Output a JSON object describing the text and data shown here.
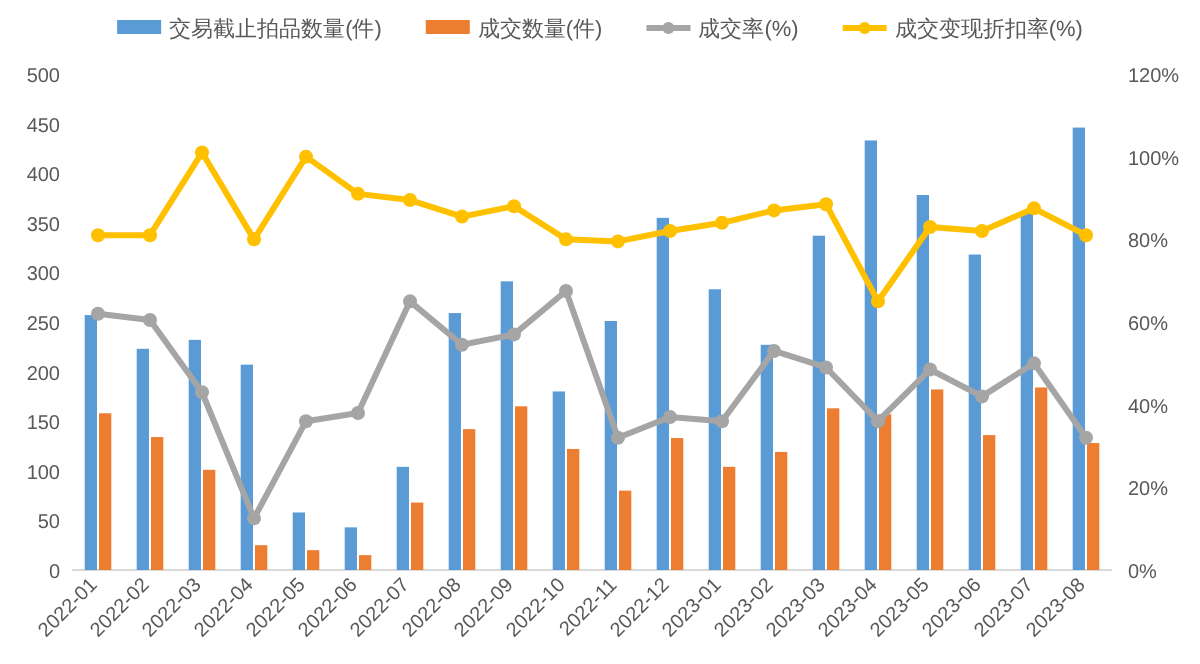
{
  "chart_data": {
    "type": "bar",
    "categories": [
      "2022-01",
      "2022-02",
      "2022-03",
      "2022-04",
      "2022-05",
      "2022-06",
      "2022-07",
      "2022-08",
      "2022-09",
      "2022-10",
      "2022-11",
      "2022-12",
      "2023-01",
      "2023-02",
      "2023-03",
      "2023-04",
      "2023-05",
      "2023-06",
      "2023-07",
      "2023-08"
    ],
    "series": [
      {
        "name": "交易截止拍品数量(件)",
        "color": "#5b9bd5",
        "values": [
          257,
          223,
          232,
          207,
          58,
          43,
          104,
          259,
          291,
          180,
          251,
          355,
          283,
          227,
          337,
          433,
          378,
          318,
          362,
          446
        ]
      },
      {
        "name": "成交数量(件)",
        "color": "#ed7d31",
        "values": [
          158,
          134,
          101,
          25,
          20,
          15,
          68,
          142,
          165,
          122,
          80,
          133,
          104,
          119,
          163,
          157,
          182,
          136,
          184,
          128
        ]
      },
      {
        "name": "成交率(%)",
        "type": "line",
        "axis": "y2",
        "color": "#a5a5a5",
        "values": [
          62,
          60.5,
          43,
          12.5,
          36,
          38,
          65,
          54.5,
          57,
          67.5,
          32,
          37,
          36,
          53,
          49,
          36,
          48.5,
          42,
          50,
          32
        ]
      },
      {
        "name": "成交变现折扣率(%)",
        "type": "line",
        "axis": "y2",
        "color": "#ffc000",
        "values": [
          81,
          81,
          101,
          80,
          100,
          91,
          89.5,
          85.5,
          88,
          80,
          79.5,
          82,
          84,
          87,
          88.5,
          65,
          83,
          82,
          87.5,
          81
        ]
      }
    ],
    "ylim": [
      0,
      500
    ],
    "yticks": [
      0,
      50,
      100,
      150,
      200,
      250,
      300,
      350,
      400,
      450,
      500
    ],
    "y2lim": [
      0,
      120
    ],
    "y2ticks": [
      {
        "value": 0,
        "label": "0%"
      },
      {
        "value": 20,
        "label": "20%"
      },
      {
        "value": 40,
        "label": "40%"
      },
      {
        "value": 60,
        "label": "60%"
      },
      {
        "value": 80,
        "label": "80%"
      },
      {
        "value": 100,
        "label": "100%"
      },
      {
        "value": 120,
        "label": "120%"
      }
    ],
    "legend": "top",
    "marker": "circle"
  }
}
